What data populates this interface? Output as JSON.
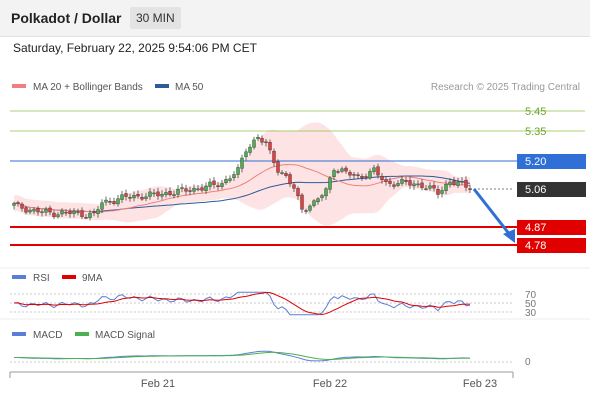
{
  "header": {
    "title": "Polkadot / Dollar",
    "timeframe": "30 MIN",
    "datetime": "Saturday, February 22, 2025 9:54:06 PM CET"
  },
  "legend": {
    "ma20_label": "MA 20 + Bollinger Bands",
    "ma50_label": "MA 50",
    "credit": "Research © 2025 Trading Central"
  },
  "colors": {
    "ma20": "#f08080",
    "ma50": "#2f5b9a",
    "bands_fill": "#fde0e0",
    "resistance": "#8bc34a",
    "pivot": "#2f6fd6",
    "support": "#e00000",
    "price_tag": "#333333",
    "arrow": "#2f6fd6",
    "rsi": "#5b7fd6",
    "rsi_ma": "#e00000",
    "macd": "#5b7fd6",
    "macd_signal": "#4caf50",
    "candle_up": "#4caf50",
    "candle_down": "#e04040"
  },
  "levels": [
    {
      "value": 5.45,
      "label": "5.45",
      "type": "resistance"
    },
    {
      "value": 5.35,
      "label": "5.35",
      "type": "resistance"
    },
    {
      "value": 5.2,
      "label": "5.20",
      "type": "pivot"
    },
    {
      "value": 5.06,
      "label": "5.06",
      "type": "last"
    },
    {
      "value": 4.87,
      "label": "4.87",
      "type": "support"
    },
    {
      "value": 4.78,
      "label": "4.78",
      "type": "support"
    }
  ],
  "rsi_panel": {
    "rsi_label": "RSI",
    "ma_label": "9MA",
    "ticks": [
      "70",
      "50",
      "30"
    ]
  },
  "macd_panel": {
    "macd_label": "MACD",
    "signal_label": "MACD Signal",
    "tick": "0"
  },
  "x_axis": [
    "Feb 21",
    "Feb 22",
    "Feb 23"
  ],
  "chart_data": {
    "type": "candlestick",
    "symbol": "Polkadot / Dollar",
    "interval": "30 MIN",
    "ylim": [
      4.75,
      5.47
    ],
    "x_ticks": [
      "Feb 21",
      "Feb 22",
      "Feb 23"
    ],
    "price_anchors": [
      [
        0,
        4.98
      ],
      [
        5,
        4.95
      ],
      [
        10,
        4.94
      ],
      [
        15,
        4.94
      ],
      [
        20,
        4.93
      ],
      [
        22,
        4.99
      ],
      [
        28,
        5.02
      ],
      [
        35,
        5.03
      ],
      [
        42,
        5.05
      ],
      [
        48,
        5.07
      ],
      [
        52,
        5.09
      ],
      [
        56,
        5.15
      ],
      [
        58,
        5.26
      ],
      [
        61,
        5.32
      ],
      [
        63,
        5.28
      ],
      [
        66,
        5.16
      ],
      [
        68,
        5.12
      ],
      [
        70,
        5.06
      ],
      [
        72,
        4.96
      ],
      [
        75,
        4.99
      ],
      [
        78,
        5.05
      ],
      [
        80,
        5.17
      ],
      [
        83,
        5.14
      ],
      [
        86,
        5.12
      ],
      [
        90,
        5.15
      ],
      [
        93,
        5.09
      ],
      [
        98,
        5.09
      ],
      [
        102,
        5.08
      ],
      [
        106,
        5.04
      ],
      [
        109,
        5.1
      ],
      [
        112,
        5.08
      ],
      [
        114,
        5.06
      ]
    ],
    "outlook": {
      "from": 5.06,
      "to": 4.78,
      "direction": "down"
    }
  }
}
